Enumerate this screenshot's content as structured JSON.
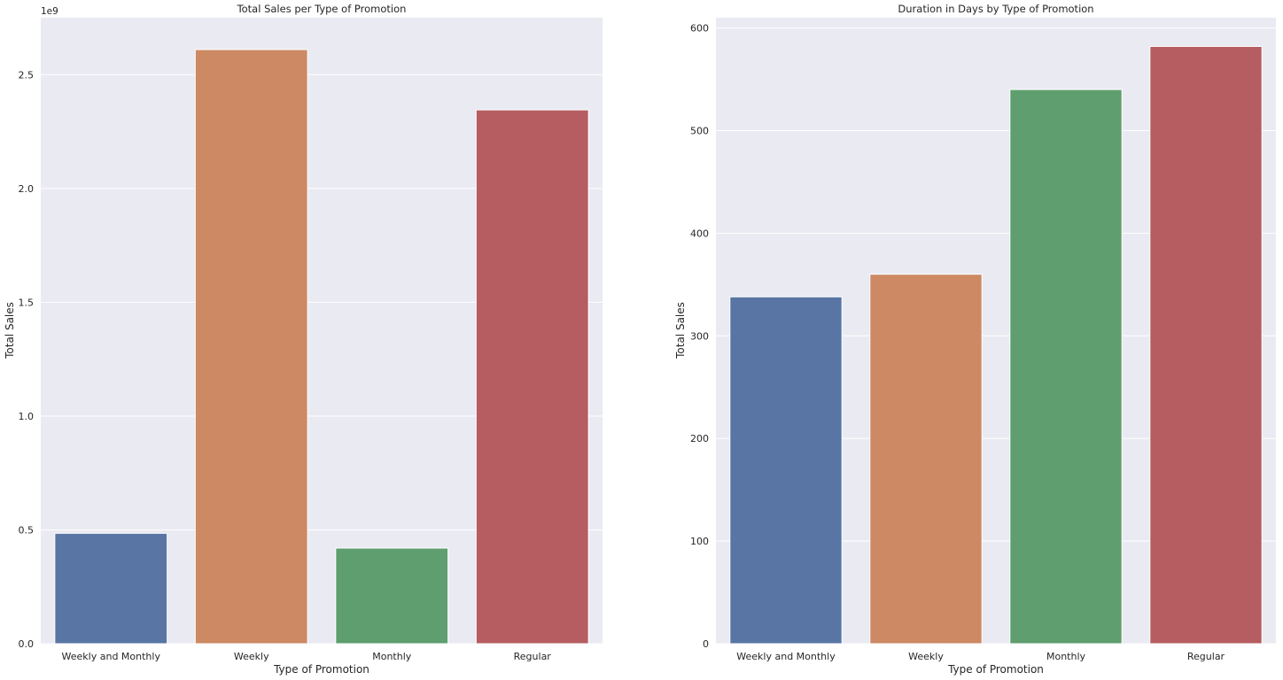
{
  "chart_data": [
    {
      "type": "bar",
      "title": "Total Sales per Type of Promotion",
      "xlabel": "Type of Promotion",
      "ylabel": "Total Sales",
      "y_offset_label": "1e9",
      "categories": [
        "Weekly and Monthly",
        "Weekly",
        "Monthly",
        "Regular"
      ],
      "values": [
        0.485,
        2.61,
        0.42,
        2.345
      ],
      "colors": [
        "#5875a4",
        "#cc8963",
        "#5f9e6e",
        "#b55d60"
      ],
      "ylim": [
        0,
        2.75
      ],
      "yticks": [
        0.0,
        0.5,
        1.0,
        1.5,
        2.0,
        2.5
      ],
      "ytick_labels": [
        "0.0",
        "0.5",
        "1.0",
        "1.5",
        "2.0",
        "2.5"
      ],
      "grid": true,
      "background": "#eaeaf2"
    },
    {
      "type": "bar",
      "title": "Duration in Days by Type of Promotion",
      "xlabel": "Type of Promotion",
      "ylabel": "Total Sales",
      "categories": [
        "Weekly and Monthly",
        "Weekly",
        "Monthly",
        "Regular"
      ],
      "values": [
        338,
        360,
        540,
        582
      ],
      "colors": [
        "#5875a4",
        "#cc8963",
        "#5f9e6e",
        "#b55d60"
      ],
      "ylim": [
        0,
        610
      ],
      "yticks": [
        0,
        100,
        200,
        300,
        400,
        500,
        600
      ],
      "ytick_labels": [
        "0",
        "100",
        "200",
        "300",
        "400",
        "500",
        "600"
      ],
      "grid": true,
      "background": "#eaeaf2"
    }
  ]
}
